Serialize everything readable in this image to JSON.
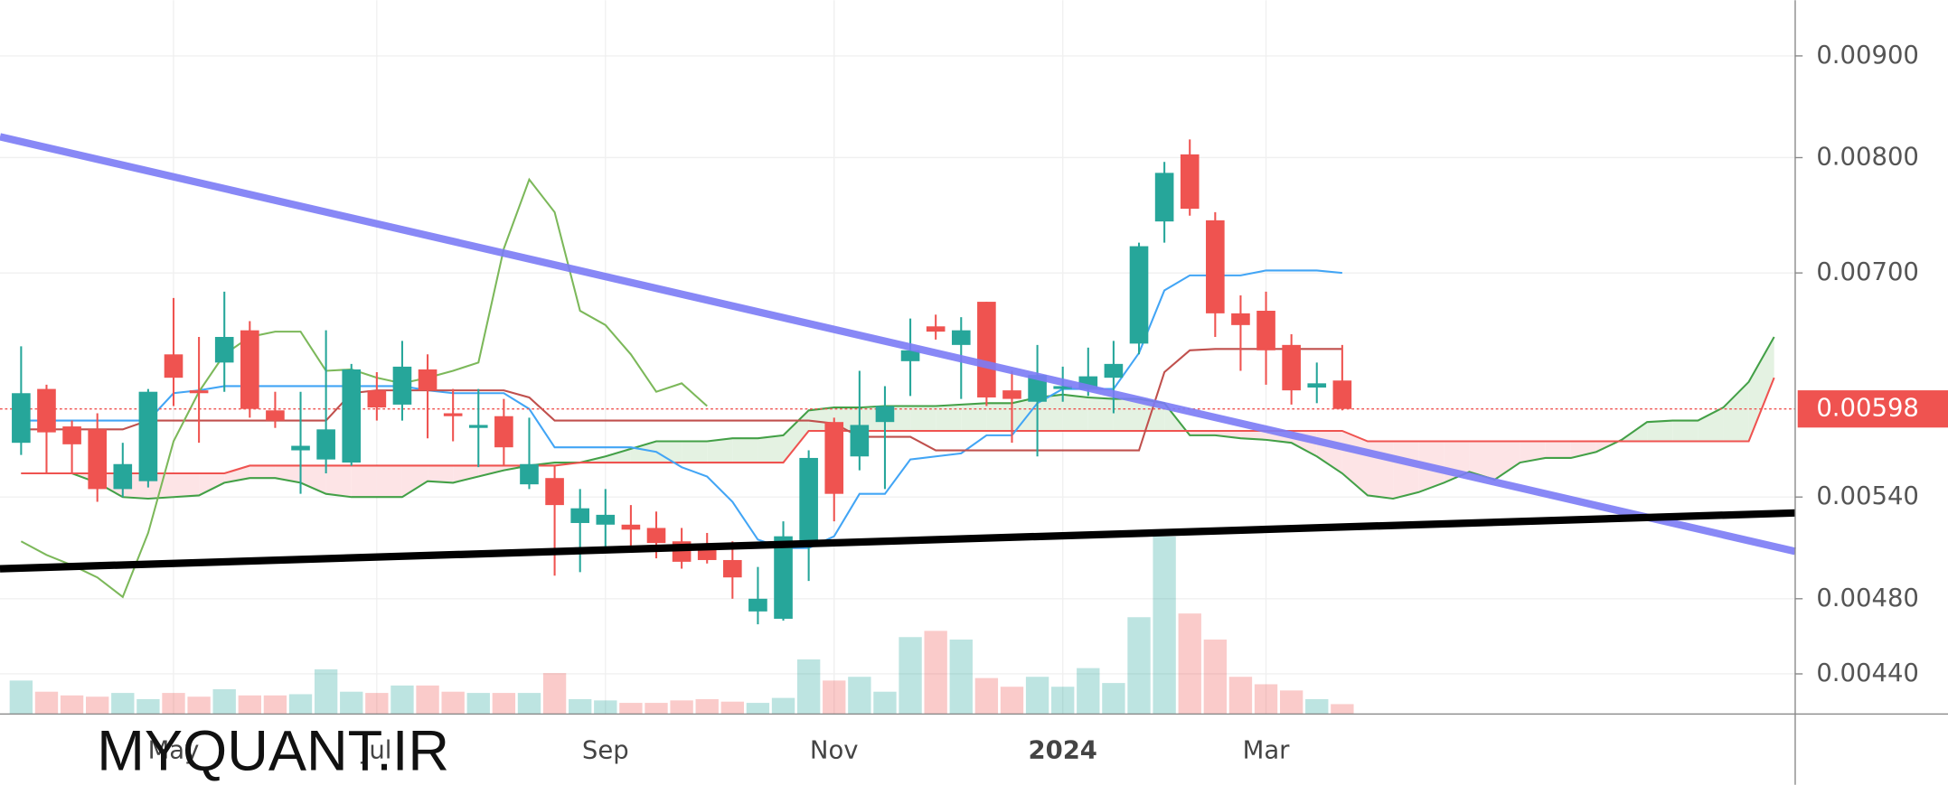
{
  "chart_data": {
    "type": "candlestick",
    "log_scale": true,
    "grid": true,
    "categories": [
      null,
      null,
      null,
      null,
      null,
      null,
      "May",
      null,
      null,
      null,
      null,
      null,
      null,
      null,
      "Jul",
      null,
      null,
      null,
      null,
      null,
      null,
      null,
      null,
      "Sep",
      null,
      null,
      null,
      null,
      null,
      null,
      null,
      null,
      "Nov",
      null,
      null,
      null,
      null,
      null,
      null,
      null,
      null,
      "2024",
      null,
      null,
      null,
      null,
      null,
      null,
      null,
      "Mar",
      null,
      null,
      null,
      null,
      null,
      null,
      null,
      null,
      null,
      null,
      null,
      null,
      null,
      null,
      null,
      null,
      null,
      null,
      null,
      null
    ],
    "open": [
      0.00575,
      0.00612,
      0.00586,
      0.00584,
      0.00545,
      0.0055,
      0.00637,
      0.00611,
      0.00631,
      0.00655,
      0.00597,
      0.0057,
      0.00564,
      0.00562,
      0.00611,
      0.00601,
      0.00626,
      0.00595,
      0.00585,
      0.00593,
      0.00548,
      0.00552,
      0.00524,
      0.00523,
      0.00523,
      0.00521,
      0.00513,
      0.00511,
      0.00502,
      0.00473,
      0.00469,
      0.00512,
      0.00589,
      0.00566,
      0.00589,
      0.00632,
      0.00658,
      0.00644,
      0.00677,
      0.00611,
      0.00603,
      0.00612,
      0.00612,
      0.0062,
      0.00645,
      0.00743,
      0.00803,
      0.00744,
      0.00668,
      0.0067,
      0.00644,
      0.00613,
      0.00618,
      null,
      null,
      null,
      null,
      null,
      null,
      null,
      null,
      null,
      null,
      null,
      null,
      null,
      null,
      null,
      null,
      null
    ],
    "high": [
      0.00643,
      0.00615,
      0.0059,
      0.00595,
      0.00575,
      0.00612,
      0.0068,
      0.0065,
      0.00685,
      0.00662,
      0.0061,
      0.0061,
      0.00655,
      0.0063,
      0.00624,
      0.00647,
      0.00637,
      0.00612,
      0.00612,
      0.00605,
      0.00592,
      0.0056,
      0.00545,
      0.00545,
      0.00535,
      0.00531,
      0.00521,
      0.00518,
      0.00513,
      0.00498,
      0.00525,
      0.0057,
      0.00592,
      0.00625,
      0.00614,
      0.00664,
      0.00667,
      0.00665,
      0.00677,
      0.00625,
      0.00644,
      0.00628,
      0.00642,
      0.00647,
      0.00725,
      0.00796,
      0.00817,
      0.00751,
      0.00682,
      0.00685,
      0.00652,
      0.00631,
      0.00644,
      null,
      null,
      null,
      null,
      null,
      null,
      null,
      null,
      null,
      null,
      null,
      null,
      null,
      null,
      null,
      null,
      null
    ],
    "low": [
      0.00567,
      0.00555,
      0.00555,
      0.00537,
      0.0054,
      0.00546,
      0.006,
      0.00575,
      0.0061,
      0.00592,
      0.00585,
      0.00542,
      0.00555,
      0.0056,
      0.0059,
      0.0059,
      0.00578,
      0.00576,
      0.00559,
      0.0056,
      0.00545,
      0.00493,
      0.00495,
      0.00508,
      0.00508,
      0.00503,
      0.00497,
      0.005,
      0.0048,
      0.00466,
      0.00468,
      0.0049,
      0.00525,
      0.00557,
      0.00545,
      0.00607,
      0.00648,
      0.00605,
      0.006,
      0.00575,
      0.00566,
      0.00603,
      0.00607,
      0.00595,
      0.00637,
      0.00725,
      0.00748,
      0.0065,
      0.00625,
      0.00615,
      0.00601,
      0.00602,
      0.00597,
      null,
      null,
      null,
      null,
      null,
      null,
      null,
      null,
      null,
      null,
      null,
      null,
      null,
      null,
      null,
      null,
      null
    ],
    "close": [
      0.00609,
      0.00582,
      0.00574,
      0.00545,
      0.00561,
      0.0061,
      0.0062,
      0.00609,
      0.0065,
      0.00598,
      0.0059,
      0.00573,
      0.00584,
      0.00626,
      0.00599,
      0.00628,
      0.00611,
      0.00593,
      0.00587,
      0.00572,
      0.00561,
      0.00535,
      0.00533,
      0.00529,
      0.0052,
      0.00512,
      0.00501,
      0.00502,
      0.00492,
      0.0048,
      0.00516,
      0.00565,
      0.00542,
      0.00587,
      0.006,
      0.0064,
      0.00654,
      0.00655,
      0.00606,
      0.00605,
      0.00622,
      0.00614,
      0.00621,
      0.0063,
      0.00722,
      0.00786,
      0.00754,
      0.00668,
      0.00659,
      0.0064,
      0.00611,
      0.00616,
      0.00598,
      null,
      null,
      null,
      null,
      null,
      null,
      null,
      null,
      null,
      null,
      null,
      null,
      null,
      null,
      null,
      null,
      null
    ],
    "volume": [
      27,
      18,
      15,
      14,
      17,
      12,
      17,
      14,
      20,
      15,
      15,
      16,
      36,
      18,
      17,
      23,
      23,
      18,
      17,
      17,
      17,
      33,
      12,
      11,
      9,
      9,
      11,
      12,
      10,
      9,
      13,
      44,
      27,
      30,
      18,
      62,
      67,
      60,
      29,
      22,
      30,
      22,
      37,
      25,
      78,
      143,
      81,
      60,
      30,
      24,
      19,
      12,
      8,
      null,
      null,
      null,
      null,
      null,
      null,
      null,
      null,
      null,
      null,
      null,
      null,
      null,
      null,
      null,
      null,
      null
    ],
    "up_color": "#26a69a",
    "down_color": "#ef5350",
    "lines": [
      {
        "color": "#42a5f5",
        "values": [
          0.0059,
          0.0059,
          0.0059,
          0.0059,
          0.0059,
          0.0059,
          0.00609,
          0.00611,
          0.00614,
          0.00614,
          0.00614,
          0.00614,
          0.00614,
          0.00614,
          0.00614,
          0.00614,
          0.00611,
          0.00609,
          0.00609,
          0.00609,
          0.00598,
          0.00572,
          0.00572,
          0.00572,
          0.00572,
          0.00569,
          0.00559,
          0.00553,
          0.00537,
          0.00514,
          0.00509,
          0.00509,
          0.00516,
          0.00542,
          0.00542,
          0.00564,
          0.00566,
          0.00568,
          0.0058,
          0.0058,
          0.00602,
          0.00612,
          0.00612,
          0.00612,
          0.00638,
          0.00686,
          0.00698,
          0.00698,
          0.00698,
          0.00702,
          0.00702,
          0.00702,
          0.007,
          null,
          null,
          null,
          null,
          null,
          null,
          null,
          null,
          null,
          null,
          null,
          null,
          null,
          null,
          null,
          null,
          null
        ]
      },
      {
        "color": "#c0504d",
        "values": [
          0.00584,
          0.00584,
          0.00584,
          0.00584,
          0.00584,
          0.0059,
          0.0059,
          0.0059,
          0.0059,
          0.0059,
          0.0059,
          0.0059,
          0.0059,
          0.00609,
          0.00611,
          0.00611,
          0.00611,
          0.00611,
          0.00611,
          0.00611,
          0.00606,
          0.0059,
          0.0059,
          0.0059,
          0.0059,
          0.0059,
          0.0059,
          0.0059,
          0.0059,
          0.0059,
          0.0059,
          0.0059,
          0.00588,
          0.00579,
          0.00579,
          0.00579,
          0.0057,
          0.0057,
          0.0057,
          0.0057,
          0.0057,
          0.0057,
          0.0057,
          0.0057,
          0.0057,
          0.00624,
          0.0064,
          0.00641,
          0.00641,
          0.00641,
          0.00641,
          0.00641,
          0.00641,
          null,
          null,
          null,
          null,
          null,
          null,
          null,
          null,
          null,
          null,
          null,
          null,
          null,
          null,
          null,
          null,
          null
        ]
      },
      {
        "color": "#7cb85a",
        "values": [
          0.00513,
          0.00505,
          0.00499,
          0.00492,
          0.00481,
          0.00518,
          0.00576,
          0.0061,
          0.00637,
          0.0065,
          0.00654,
          0.00654,
          0.00625,
          0.00626,
          0.0062,
          0.00616,
          0.0062,
          0.00625,
          0.00631,
          0.0072,
          0.0078,
          0.00751,
          0.0067,
          0.00659,
          0.00637,
          0.0061,
          0.00616,
          0.006,
          null,
          null,
          null,
          null,
          null,
          null,
          null,
          null,
          null,
          null,
          null,
          null,
          null,
          null,
          null,
          null,
          null,
          null,
          null,
          null,
          null,
          null,
          null,
          null,
          null,
          null,
          null,
          null,
          null,
          null,
          null,
          null,
          null,
          null,
          null,
          null,
          null,
          null,
          null,
          null,
          null,
          null
        ]
      }
    ],
    "cloud": {
      "span_a": [
        0.00555,
        0.00555,
        0.00555,
        0.00549,
        0.0054,
        0.00539,
        0.0054,
        0.00541,
        0.00549,
        0.00552,
        0.00552,
        0.00549,
        0.00542,
        0.0054,
        0.0054,
        0.0054,
        0.0055,
        0.00549,
        0.00553,
        0.00557,
        0.0056,
        0.00562,
        0.00562,
        0.00566,
        0.00571,
        0.00576,
        0.00576,
        0.00576,
        0.00578,
        0.00578,
        0.0058,
        0.00597,
        0.00599,
        0.00599,
        0.006,
        0.006,
        0.006,
        0.00601,
        0.00602,
        0.00602,
        0.00606,
        0.00608,
        0.00606,
        0.00605,
        0.00605,
        0.00602,
        0.0058,
        0.0058,
        0.00578,
        0.00577,
        0.00575,
        0.00566,
        0.00555,
        0.00541,
        0.00539,
        0.00543,
        0.00549,
        0.00556,
        0.00551,
        0.00562,
        0.00565,
        0.00565,
        0.00569,
        0.00577,
        0.00589,
        0.0059,
        0.0059,
        0.00599,
        0.00617,
        0.0065
      ],
      "span_b": [
        0.00555,
        0.00555,
        0.00555,
        0.00555,
        0.00555,
        0.00555,
        0.00555,
        0.00555,
        0.00555,
        0.0056,
        0.0056,
        0.0056,
        0.0056,
        0.0056,
        0.0056,
        0.0056,
        0.0056,
        0.0056,
        0.0056,
        0.0056,
        0.0056,
        0.0056,
        0.00562,
        0.00562,
        0.00562,
        0.00562,
        0.00562,
        0.00562,
        0.00562,
        0.00562,
        0.00562,
        0.00583,
        0.00583,
        0.00583,
        0.00583,
        0.00583,
        0.00583,
        0.00583,
        0.00583,
        0.00583,
        0.00583,
        0.00583,
        0.00583,
        0.00583,
        0.00583,
        0.00583,
        0.00583,
        0.00583,
        0.00583,
        0.00583,
        0.00583,
        0.00583,
        0.00583,
        0.00576,
        0.00576,
        0.00576,
        0.00576,
        0.00576,
        0.00576,
        0.00576,
        0.00576,
        0.00576,
        0.00576,
        0.00576,
        0.00576,
        0.00576,
        0.00576,
        0.00576,
        0.00576,
        0.0062
      ],
      "span_a_color": "#43a047",
      "span_b_color": "#ef5350",
      "up_fill": "#e4f2e2",
      "down_fill": "#fde4e6"
    },
    "last_price": 0.00598,
    "last_price_color": "#ef5350",
    "ylim": [
      0.0042,
      0.0096
    ],
    "yticks": [
      {
        "value": 0.0044,
        "label": "0.00440"
      },
      {
        "value": 0.0048,
        "label": "0.00480"
      },
      {
        "value": 0.0054,
        "label": "0.00540"
      },
      {
        "value": 0.007,
        "label": "0.00700"
      },
      {
        "value": 0.008,
        "label": "0.00800"
      },
      {
        "value": 0.009,
        "label": "0.00900"
      }
    ],
    "watermark": "MYQUANT.IR"
  }
}
